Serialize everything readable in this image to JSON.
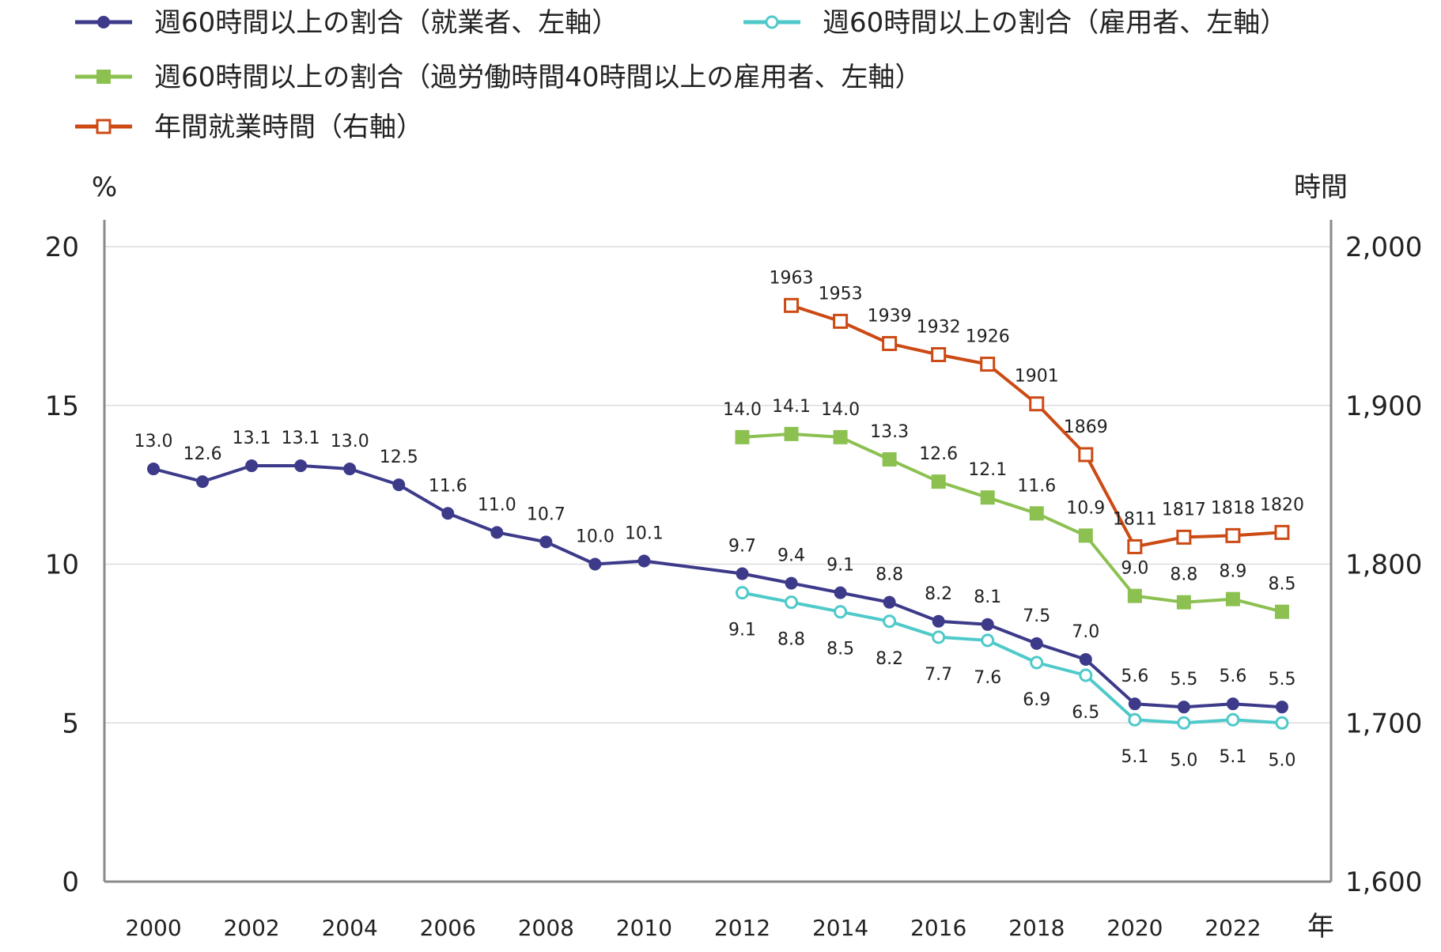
{
  "chart_data": {
    "type": "line",
    "title": "",
    "x": [
      2000,
      2001,
      2002,
      2003,
      2004,
      2005,
      2006,
      2007,
      2008,
      2009,
      2010,
      2011,
      2012,
      2013,
      2014,
      2015,
      2016,
      2017,
      2018,
      2019,
      2020,
      2021,
      2022,
      2023
    ],
    "x_ticks": [
      "2000",
      "2002",
      "2004",
      "2006",
      "2008",
      "2010",
      "2012",
      "2014",
      "2016",
      "2018",
      "2020",
      "2022"
    ],
    "x_tick_values": [
      2000,
      2002,
      2004,
      2006,
      2008,
      2010,
      2012,
      2014,
      2016,
      2018,
      2020,
      2022
    ],
    "xlabel": "年",
    "xlim": [
      1999,
      2024
    ],
    "ylabel_left": "%",
    "ylim_left": [
      0,
      20
    ],
    "y_ticks_left": [
      "0",
      "5",
      "10",
      "15",
      "20"
    ],
    "y_tick_values_left": [
      0,
      5,
      10,
      15,
      20
    ],
    "ylabel_right": "時間",
    "ylim_right": [
      1600,
      2000
    ],
    "y_ticks_right": [
      "1,600",
      "1,700",
      "1,800",
      "1,900",
      "2,000"
    ],
    "y_tick_values_right": [
      1600,
      1700,
      1800,
      1900,
      2000
    ],
    "grid": "horizontal",
    "legend_position": "top",
    "series": [
      {
        "name": "週60時間以上の割合（就業者、左軸）",
        "axis": "left",
        "color": "#3d3a8a",
        "marker": "filled-circle",
        "label_position": "above",
        "x": [
          2000,
          2001,
          2002,
          2003,
          2004,
          2005,
          2006,
          2007,
          2008,
          2009,
          2010,
          2012,
          2013,
          2014,
          2015,
          2016,
          2017,
          2018,
          2019,
          2020,
          2021,
          2022,
          2023
        ],
        "values": [
          13.0,
          12.6,
          13.1,
          13.1,
          13.0,
          12.5,
          11.6,
          11.0,
          10.7,
          10.0,
          10.1,
          9.7,
          9.4,
          9.1,
          8.8,
          8.2,
          8.1,
          7.5,
          7.0,
          5.6,
          5.5,
          5.6,
          5.5
        ],
        "labels": [
          "13.0",
          "12.6",
          "13.1",
          "13.1",
          "13.0",
          "12.5",
          "11.6",
          "11.0",
          "10.7",
          "10.0",
          "10.1",
          "9.7",
          "9.4",
          "9.1",
          "8.8",
          "8.2",
          "8.1",
          "7.5",
          "7.0",
          "5.6",
          "5.5",
          "5.6",
          "5.5"
        ]
      },
      {
        "name": "週60時間以上の割合（雇用者、左軸）",
        "axis": "left",
        "color": "#4fc9c9",
        "marker": "hollow-circle",
        "label_position": "below",
        "x": [
          2012,
          2013,
          2014,
          2015,
          2016,
          2017,
          2018,
          2019,
          2020,
          2021,
          2022,
          2023
        ],
        "values": [
          9.1,
          8.8,
          8.5,
          8.2,
          7.7,
          7.6,
          6.9,
          6.5,
          5.1,
          5.0,
          5.1,
          5.0
        ],
        "labels": [
          "9.1",
          "8.8",
          "8.5",
          "8.2",
          "7.7",
          "7.6",
          "6.9",
          "6.5",
          "5.1",
          "5.0",
          "5.1",
          "5.0"
        ]
      },
      {
        "name": "週60時間以上の割合（過労働時間40時間以上の雇用者、左軸）",
        "axis": "left",
        "color": "#8cc152",
        "marker": "filled-square",
        "label_position": "above",
        "x": [
          2012,
          2013,
          2014,
          2015,
          2016,
          2017,
          2018,
          2019,
          2020,
          2021,
          2022,
          2023
        ],
        "values": [
          14.0,
          14.1,
          14.0,
          13.3,
          12.6,
          12.1,
          11.6,
          10.9,
          9.0,
          8.8,
          8.9,
          8.5
        ],
        "labels": [
          "14.0",
          "14.1",
          "14.0",
          "13.3",
          "12.6",
          "12.1",
          "11.6",
          "10.9",
          "9.0",
          "8.8",
          "8.9",
          "8.5"
        ]
      },
      {
        "name": "年間就業時間（右軸）",
        "axis": "right",
        "color": "#cc4a14",
        "marker": "hollow-square",
        "label_position": "above",
        "x": [
          2013,
          2014,
          2015,
          2016,
          2017,
          2018,
          2019,
          2020,
          2021,
          2022,
          2023
        ],
        "values": [
          1963,
          1953,
          1939,
          1932,
          1926,
          1901,
          1869,
          1811,
          1817,
          1818,
          1820
        ],
        "labels": [
          "1963",
          "1953",
          "1939",
          "1932",
          "1926",
          "1901",
          "1869",
          "1811",
          "1817",
          "1818",
          "1820"
        ]
      }
    ]
  }
}
